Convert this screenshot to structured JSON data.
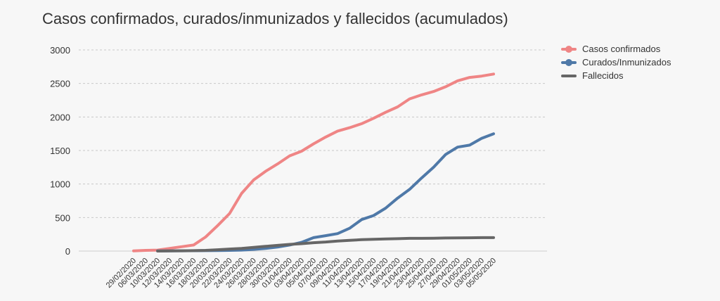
{
  "chart_data": {
    "type": "line",
    "title": "Casos confirmados, curados/inmunizados y fallecidos (acumulados)",
    "xlabel": "",
    "ylabel": "",
    "ylim": [
      0,
      3000
    ],
    "yticks": [
      0,
      500,
      1000,
      1500,
      2000,
      2500,
      3000
    ],
    "grid": true,
    "legend_position": "right",
    "x": [
      "29/02/2020",
      "06/03/2020",
      "10/03/2020",
      "12/03/2020",
      "14/03/2020",
      "16/03/2020",
      "18/03/2020",
      "20/03/2020",
      "22/03/2020",
      "24/03/2020",
      "26/03/2020",
      "28/03/2020",
      "30/03/2020",
      "01/04/2020",
      "03/04/2020",
      "05/04/2020",
      "07/04/2020",
      "09/04/2020",
      "11/04/2020",
      "13/04/2020",
      "15/04/2020",
      "17/04/2020",
      "19/04/2020",
      "21/04/2020",
      "23/04/2020",
      "25/04/2020",
      "27/04/2020",
      "29/04/2020",
      "01/05/2020",
      "03/05/2020",
      "05/05/2020"
    ],
    "series": [
      {
        "name": "Casos confirmados",
        "color": "#ef8585",
        "values": [
          2,
          10,
          15,
          40,
          65,
          90,
          210,
          380,
          560,
          860,
          1060,
          1190,
          1300,
          1420,
          1490,
          1600,
          1700,
          1790,
          1840,
          1900,
          1980,
          2070,
          2150,
          2270,
          2330,
          2380,
          2450,
          2540,
          2590,
          2610,
          2640
        ]
      },
      {
        "name": "Curados/Inmunizados",
        "color": "#4f79a8",
        "values": [
          null,
          null,
          2,
          3,
          4,
          5,
          6,
          8,
          10,
          15,
          25,
          40,
          60,
          90,
          130,
          200,
          230,
          260,
          340,
          470,
          530,
          640,
          790,
          920,
          1090,
          1250,
          1440,
          1550,
          1580,
          1680,
          1750
        ]
      },
      {
        "name": "Fallecidos",
        "color": "#666666",
        "values": [
          null,
          null,
          0,
          2,
          4,
          6,
          10,
          20,
          30,
          40,
          55,
          70,
          85,
          100,
          110,
          125,
          135,
          150,
          160,
          170,
          175,
          180,
          185,
          190,
          190,
          192,
          195,
          197,
          198,
          200,
          200
        ]
      }
    ]
  }
}
